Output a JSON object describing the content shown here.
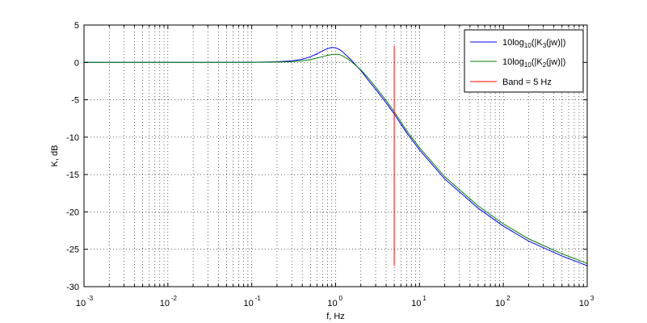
{
  "chart_data": {
    "type": "line",
    "xscale": "log",
    "xlim": [
      0.001,
      1000
    ],
    "ylim": [
      -30,
      5
    ],
    "grid": true,
    "xlabel": "f, Hz",
    "ylabel": "K, dB",
    "legend_position": "top-right",
    "xtick_labels": [
      {
        "base": "10",
        "exp": "-3",
        "value": 0.001
      },
      {
        "base": "10",
        "exp": "-2",
        "value": 0.01
      },
      {
        "base": "10",
        "exp": "-1",
        "value": 0.1
      },
      {
        "base": "10",
        "exp": "0",
        "value": 1
      },
      {
        "base": "10",
        "exp": "1",
        "value": 10
      },
      {
        "base": "10",
        "exp": "2",
        "value": 100
      },
      {
        "base": "10",
        "exp": "3",
        "value": 1000
      }
    ],
    "ytick_labels": [
      "5",
      "0",
      "-5",
      "-10",
      "-15",
      "-20",
      "-25",
      "-30"
    ],
    "yticks": [
      5,
      0,
      -5,
      -10,
      -15,
      -20,
      -25,
      -30
    ],
    "series": [
      {
        "legend_prefix": "10log",
        "legend_sub": "10",
        "legend_mid": "(|K",
        "legend_sub2": "3",
        "legend_suffix": "(jw)|)",
        "color": "#0000ff",
        "x": [
          0.001,
          0.01,
          0.1,
          0.2,
          0.3,
          0.4,
          0.5,
          0.6,
          0.7,
          0.8,
          0.9,
          1.0,
          1.1,
          1.2,
          1.4,
          1.6,
          2.0,
          2.5,
          3,
          4,
          5,
          7,
          10,
          20,
          50,
          100,
          200,
          500,
          1000
        ],
        "y": [
          0,
          0,
          0.02,
          0.08,
          0.2,
          0.42,
          0.75,
          1.15,
          1.55,
          1.85,
          2.0,
          1.95,
          1.75,
          1.45,
          0.75,
          0.1,
          -1.1,
          -2.5,
          -3.6,
          -5.4,
          -6.9,
          -9.4,
          -11.7,
          -15.6,
          -19.5,
          -21.9,
          -23.9,
          -25.9,
          -27.2
        ]
      },
      {
        "legend_prefix": "10log",
        "legend_sub": "10",
        "legend_mid": "(|K",
        "legend_sub2": "2",
        "legend_suffix": "(jw)|)",
        "color": "#008000",
        "x": [
          0.001,
          0.01,
          0.1,
          0.2,
          0.3,
          0.4,
          0.5,
          0.6,
          0.7,
          0.8,
          0.9,
          1.0,
          1.1,
          1.2,
          1.4,
          1.6,
          2.0,
          2.5,
          3,
          4,
          5,
          7,
          10,
          20,
          50,
          100,
          200,
          500,
          1000
        ],
        "y": [
          0,
          0,
          0.01,
          0.04,
          0.1,
          0.22,
          0.38,
          0.58,
          0.78,
          0.95,
          1.05,
          1.1,
          1.05,
          0.9,
          0.45,
          -0.05,
          -1.0,
          -2.2,
          -3.3,
          -5.1,
          -6.6,
          -9.1,
          -11.4,
          -15.3,
          -19.2,
          -21.6,
          -23.6,
          -25.6,
          -26.9
        ]
      }
    ],
    "vline": {
      "legend": "Band = 5 Hz",
      "x": 5,
      "y": [
        -27.2,
        2.2
      ],
      "color": "#ff0000"
    }
  }
}
